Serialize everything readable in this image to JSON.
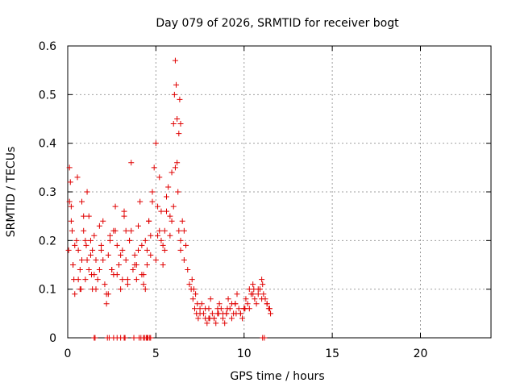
{
  "chart_data": {
    "type": "scatter",
    "title": "Day 079 of 2026, SRMTID for receiver bogt",
    "xlabel": "GPS time / hours",
    "ylabel": "SRMTID / TECUs",
    "xlim": [
      0,
      24
    ],
    "ylim": [
      0,
      0.6
    ],
    "xticks": [
      0,
      5,
      10,
      15,
      20
    ],
    "yticks": [
      0,
      0.1,
      0.2,
      0.3,
      0.4,
      0.5,
      0.6
    ],
    "xtick_labels": [
      "0",
      "5",
      "10",
      "15",
      "20"
    ],
    "ytick_labels": [
      "0",
      "0.1",
      "0.2",
      "0.3",
      "0.4",
      "0.5",
      "0.6"
    ],
    "grid": true,
    "marker": "+",
    "color": "#e00000",
    "series": [
      {
        "name": "SRMTID",
        "x": [
          0.05,
          0.1,
          0.15,
          0.2,
          0.25,
          0.3,
          0.35,
          0.4,
          0.5,
          0.55,
          0.6,
          0.7,
          0.75,
          0.8,
          0.9,
          1.0,
          1.05,
          1.1,
          1.2,
          1.3,
          1.35,
          1.4,
          1.5,
          1.6,
          1.7,
          1.8,
          1.9,
          2.0,
          2.1,
          2.2,
          2.3,
          2.4,
          2.5,
          2.6,
          2.7,
          2.8,
          2.9,
          3.0,
          3.1,
          3.2,
          3.3,
          3.4,
          3.5,
          3.6,
          3.7,
          3.8,
          3.9,
          4.0,
          4.1,
          4.2,
          4.3,
          4.4,
          4.5,
          4.6,
          4.7,
          4.8,
          4.9,
          5.0,
          5.1,
          5.2,
          5.3,
          5.4,
          5.5,
          5.6,
          5.7,
          5.8,
          5.9,
          6.0,
          6.05,
          6.1,
          6.15,
          6.2,
          6.25,
          6.3,
          6.4,
          6.5,
          6.6,
          6.7,
          6.8,
          6.9,
          7.0,
          7.1,
          7.2,
          7.3,
          7.4,
          7.5,
          7.6,
          7.7,
          7.8,
          7.9,
          8.0,
          8.1,
          8.2,
          8.3,
          8.4,
          8.5,
          8.6,
          8.7,
          8.8,
          8.9,
          9.0,
          9.1,
          9.2,
          9.3,
          9.4,
          9.5,
          9.6,
          9.7,
          9.8,
          9.9,
          10.0,
          10.1,
          10.2,
          10.3,
          10.4,
          10.5,
          10.6,
          10.7,
          10.8,
          10.9,
          11.0,
          11.1,
          11.2,
          11.3,
          11.4,
          11.5,
          0.2,
          0.4,
          0.6,
          0.8,
          1.0,
          1.2,
          1.4,
          1.6,
          1.8,
          2.0,
          2.2,
          2.4,
          2.6,
          2.8,
          3.0,
          3.2,
          3.4,
          3.6,
          3.8,
          4.0,
          4.2,
          4.4,
          4.6,
          4.8,
          5.0,
          5.2,
          5.4,
          5.6,
          5.8,
          6.0,
          6.2,
          6.4,
          6.6,
          7.5,
          8.0,
          8.5,
          9.0,
          9.5,
          10.0,
          10.5,
          11.0,
          0.3,
          0.7,
          1.1,
          1.5,
          1.9,
          2.3,
          2.7,
          3.1,
          3.5,
          3.9,
          4.3,
          4.7,
          5.1,
          5.5,
          5.9,
          7.8,
          8.3,
          8.8,
          9.3,
          9.8,
          10.3,
          10.8,
          11.3,
          0.1,
          0.9,
          1.3,
          2.5,
          3.3,
          4.5,
          5.3,
          6.1,
          6.3,
          6.35,
          6.4,
          7.05,
          7.15,
          7.25,
          7.35,
          8.05,
          8.55,
          9.05,
          9.55,
          10.05,
          10.55,
          11.05,
          11.45,
          1.5,
          1.55,
          2.25,
          2.35,
          2.6,
          2.8,
          3.0,
          3.2,
          3.25,
          3.75,
          4.05,
          4.15,
          4.3,
          4.35,
          4.45,
          4.5,
          4.55,
          4.65,
          4.7,
          11.05,
          11.15
        ],
        "y": [
          0.18,
          0.35,
          0.32,
          0.27,
          0.22,
          0.15,
          0.12,
          0.09,
          0.2,
          0.33,
          0.18,
          0.14,
          0.1,
          0.16,
          0.22,
          0.12,
          0.19,
          0.3,
          0.25,
          0.17,
          0.13,
          0.1,
          0.21,
          0.16,
          0.12,
          0.14,
          0.19,
          0.24,
          0.11,
          0.07,
          0.17,
          0.2,
          0.14,
          0.22,
          0.27,
          0.13,
          0.15,
          0.1,
          0.18,
          0.25,
          0.16,
          0.12,
          0.2,
          0.36,
          0.14,
          0.17,
          0.12,
          0.23,
          0.28,
          0.19,
          0.13,
          0.1,
          0.18,
          0.24,
          0.21,
          0.3,
          0.35,
          0.4,
          0.27,
          0.33,
          0.2,
          0.15,
          0.22,
          0.29,
          0.31,
          0.25,
          0.34,
          0.44,
          0.5,
          0.57,
          0.52,
          0.45,
          0.3,
          0.22,
          0.18,
          0.24,
          0.22,
          0.19,
          0.14,
          0.11,
          0.1,
          0.08,
          0.06,
          0.05,
          0.04,
          0.06,
          0.07,
          0.05,
          0.04,
          0.03,
          0.06,
          0.08,
          0.05,
          0.04,
          0.03,
          0.05,
          0.07,
          0.06,
          0.04,
          0.03,
          0.05,
          0.08,
          0.06,
          0.04,
          0.05,
          0.07,
          0.09,
          0.06,
          0.05,
          0.04,
          0.06,
          0.08,
          0.07,
          0.1,
          0.09,
          0.11,
          0.08,
          0.07,
          0.09,
          0.1,
          0.12,
          0.09,
          0.08,
          0.07,
          0.06,
          0.05,
          0.24,
          0.19,
          0.12,
          0.28,
          0.2,
          0.14,
          0.18,
          0.1,
          0.23,
          0.16,
          0.09,
          0.21,
          0.13,
          0.19,
          0.17,
          0.26,
          0.11,
          0.22,
          0.15,
          0.18,
          0.13,
          0.2,
          0.24,
          0.28,
          0.16,
          0.22,
          0.19,
          0.26,
          0.21,
          0.27,
          0.36,
          0.2,
          0.16,
          0.05,
          0.04,
          0.06,
          0.05,
          0.07,
          0.06,
          0.09,
          0.08,
          0.15,
          0.1,
          0.16,
          0.13,
          0.18,
          0.09,
          0.22,
          0.12,
          0.2,
          0.15,
          0.11,
          0.17,
          0.21,
          0.18,
          0.24,
          0.06,
          0.04,
          0.05,
          0.07,
          0.05,
          0.06,
          0.1,
          0.07,
          0.28,
          0.25,
          0.2,
          0.14,
          0.22,
          0.15,
          0.26,
          0.35,
          0.42,
          0.49,
          0.44,
          0.12,
          0.1,
          0.09,
          0.07,
          0.04,
          0.05,
          0.06,
          0.05,
          0.06,
          0.1,
          0.11,
          0.06,
          0.0,
          0.0,
          0.0,
          0.0,
          0.0,
          0.0,
          0.0,
          0.0,
          0.0,
          0.0,
          0.0,
          0.0,
          0.0,
          0.0,
          0.0,
          0.0,
          0.0,
          0.0,
          0.0,
          0.0,
          0.0
        ]
      }
    ]
  }
}
